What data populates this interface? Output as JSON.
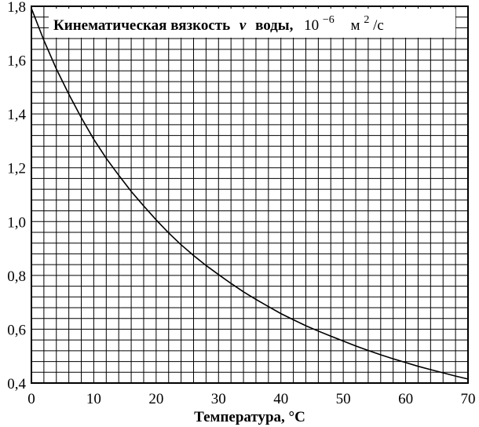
{
  "chart_data": {
    "type": "line",
    "title": {
      "main": "Кинематическая вязкость",
      "symbol": "ν",
      "after_symbol": "воды,",
      "factor_base": "10",
      "factor_exp": "−6",
      "unit_base": "м",
      "unit_exp": "2",
      "unit_tail": "/с"
    },
    "xlabel": "Температура, °С",
    "ylabel": "",
    "xlim": [
      0,
      70
    ],
    "ylim": [
      0.4,
      1.8
    ],
    "x_ticks": [
      {
        "value": 0,
        "label": "0"
      },
      {
        "value": 10,
        "label": "10"
      },
      {
        "value": 20,
        "label": "20"
      },
      {
        "value": 30,
        "label": "30"
      },
      {
        "value": 40,
        "label": "40"
      },
      {
        "value": 50,
        "label": "50"
      },
      {
        "value": 60,
        "label": "60"
      },
      {
        "value": 70,
        "label": "70"
      }
    ],
    "y_ticks": [
      {
        "value": 0.4,
        "label": "0,4"
      },
      {
        "value": 0.6,
        "label": "0,6"
      },
      {
        "value": 0.8,
        "label": "0,8"
      },
      {
        "value": 1.0,
        "label": "1,0"
      },
      {
        "value": 1.2,
        "label": "1,2"
      },
      {
        "value": 1.4,
        "label": "1,4"
      },
      {
        "value": 1.6,
        "label": "1,6"
      },
      {
        "value": 1.8,
        "label": "1,8"
      }
    ],
    "grid": true,
    "grid_minor_x_step": 2,
    "grid_minor_y_step": 0.04,
    "series": [
      {
        "x": [
          0,
          2,
          4,
          6,
          8,
          10,
          12,
          14,
          16,
          18,
          20,
          22,
          24,
          26,
          28,
          30,
          32,
          34,
          36,
          38,
          40,
          42,
          44,
          46,
          48,
          50,
          52,
          54,
          56,
          58,
          60,
          62,
          64,
          66,
          68,
          70
        ],
        "y": [
          1.792,
          1.673,
          1.567,
          1.473,
          1.386,
          1.306,
          1.235,
          1.172,
          1.112,
          1.058,
          1.006,
          0.958,
          0.914,
          0.874,
          0.837,
          0.803,
          0.77,
          0.739,
          0.711,
          0.684,
          0.658,
          0.635,
          0.613,
          0.593,
          0.574,
          0.556,
          0.538,
          0.521,
          0.505,
          0.49,
          0.476,
          0.462,
          0.45,
          0.438,
          0.426,
          0.415
        ]
      }
    ]
  }
}
